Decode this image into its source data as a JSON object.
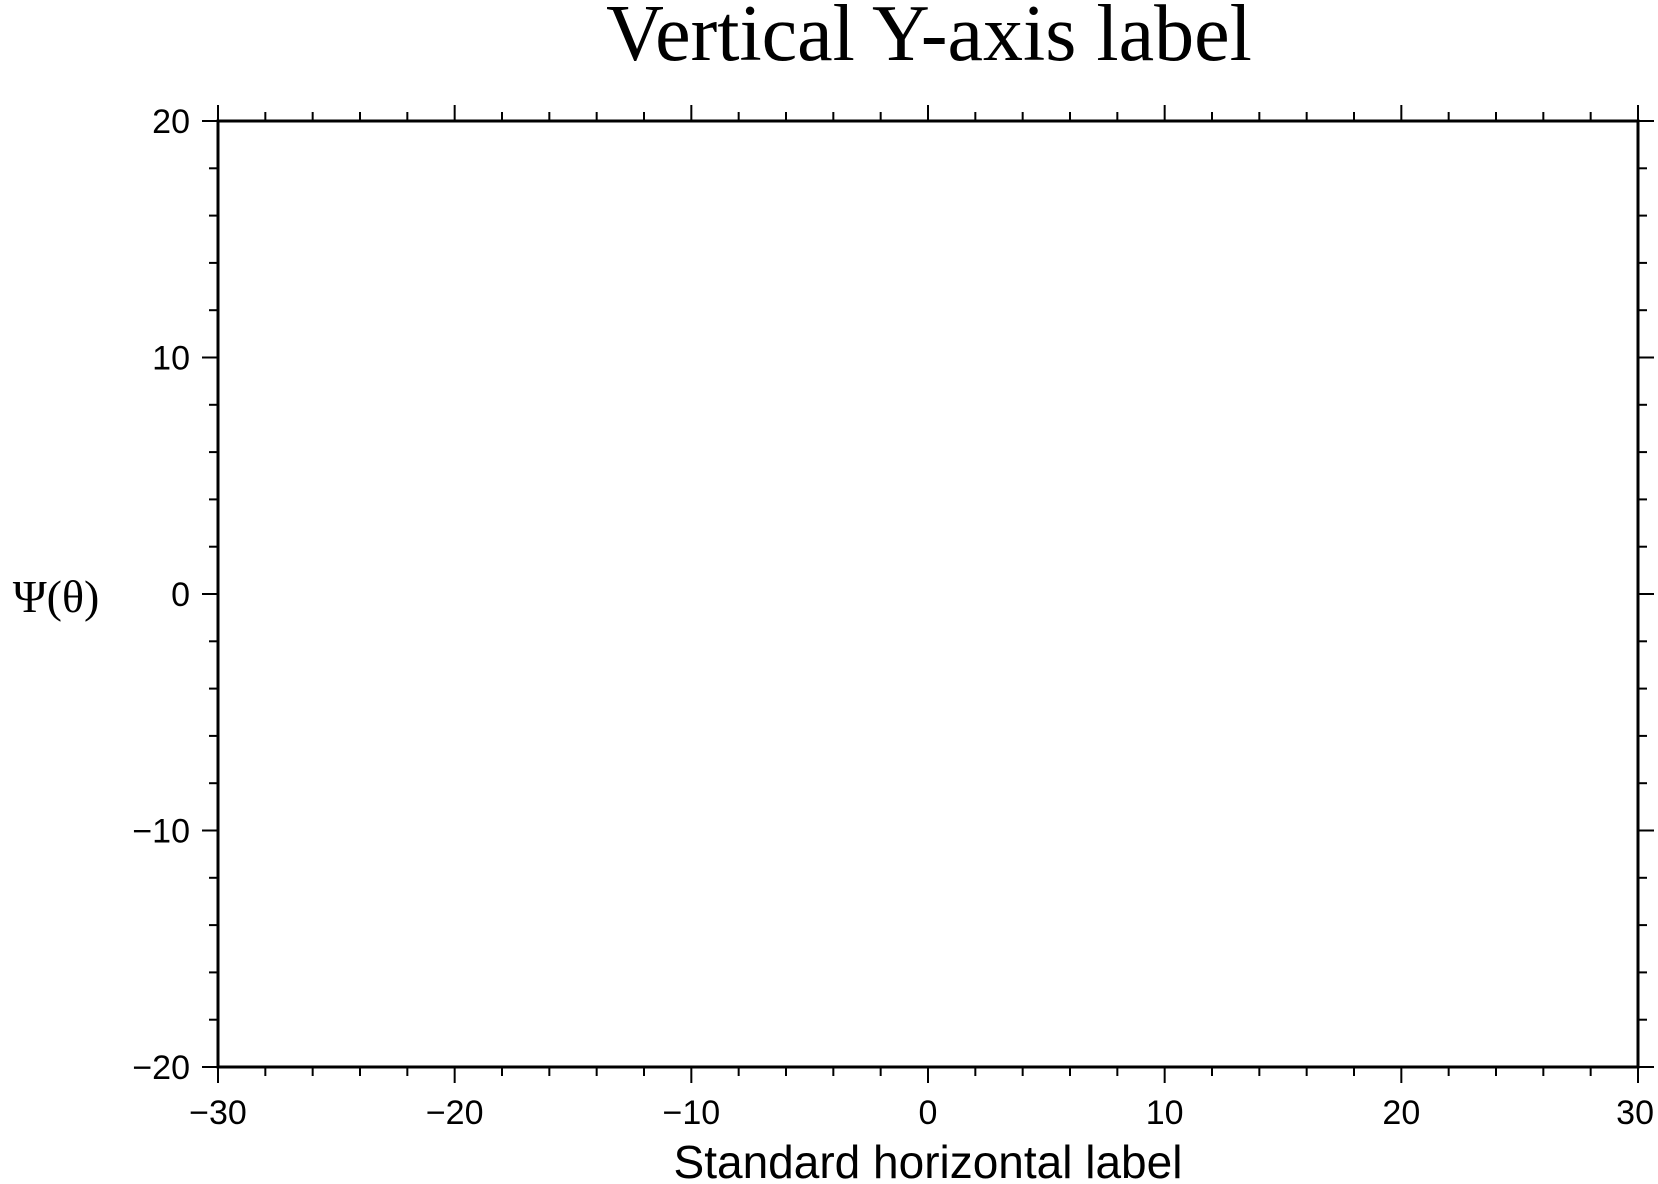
{
  "chart_data": {
    "type": "scatter",
    "title": "Vertical Y-axis label",
    "xlabel": "Standard horizontal label",
    "ylabel": "Ψ(θ)",
    "xlim": [
      -30,
      30
    ],
    "ylim": [
      -20,
      20
    ],
    "x_ticks": [
      "−30",
      "−20",
      "−10",
      "0",
      "10",
      "20",
      "30"
    ],
    "y_ticks": [
      "−20",
      "−10",
      "0",
      "10",
      "20"
    ],
    "x_tick_values": [
      -30,
      -20,
      -10,
      0,
      10,
      20,
      30
    ],
    "y_tick_values": [
      -20,
      -10,
      0,
      10,
      20
    ],
    "x_minor_step": 2,
    "y_minor_step": 2,
    "grid": false,
    "series": [],
    "colors": {
      "frame": "#000000",
      "background": "#ffffff"
    }
  }
}
